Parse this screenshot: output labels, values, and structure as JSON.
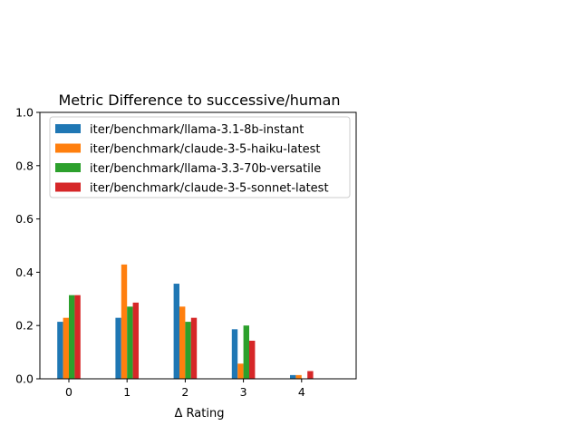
{
  "chart_data": {
    "type": "bar",
    "title": "Metric Difference to successive/human",
    "xlabel": "Δ Rating",
    "ylabel": "",
    "categories": [
      "0",
      "1",
      "2",
      "3",
      "4"
    ],
    "ylim": [
      0,
      1.0
    ],
    "yticks": [
      "0.0",
      "0.2",
      "0.4",
      "0.6",
      "0.8",
      "1.0"
    ],
    "grid": false,
    "legend_position": "upper-left",
    "series": [
      {
        "name": "iter/benchmark/llama-3.1-8b-instant",
        "color": "#1f77b4",
        "values": [
          0.214,
          0.229,
          0.357,
          0.186,
          0.014
        ]
      },
      {
        "name": "iter/benchmark/claude-3-5-haiku-latest",
        "color": "#ff7f0e",
        "values": [
          0.229,
          0.429,
          0.271,
          0.057,
          0.014
        ]
      },
      {
        "name": "iter/benchmark/llama-3.3-70b-versatile",
        "color": "#2ca02c",
        "values": [
          0.314,
          0.271,
          0.214,
          0.2,
          0.0
        ]
      },
      {
        "name": "iter/benchmark/claude-3-5-sonnet-latest",
        "color": "#d62728",
        "values": [
          0.314,
          0.286,
          0.229,
          0.143,
          0.029
        ]
      }
    ]
  }
}
